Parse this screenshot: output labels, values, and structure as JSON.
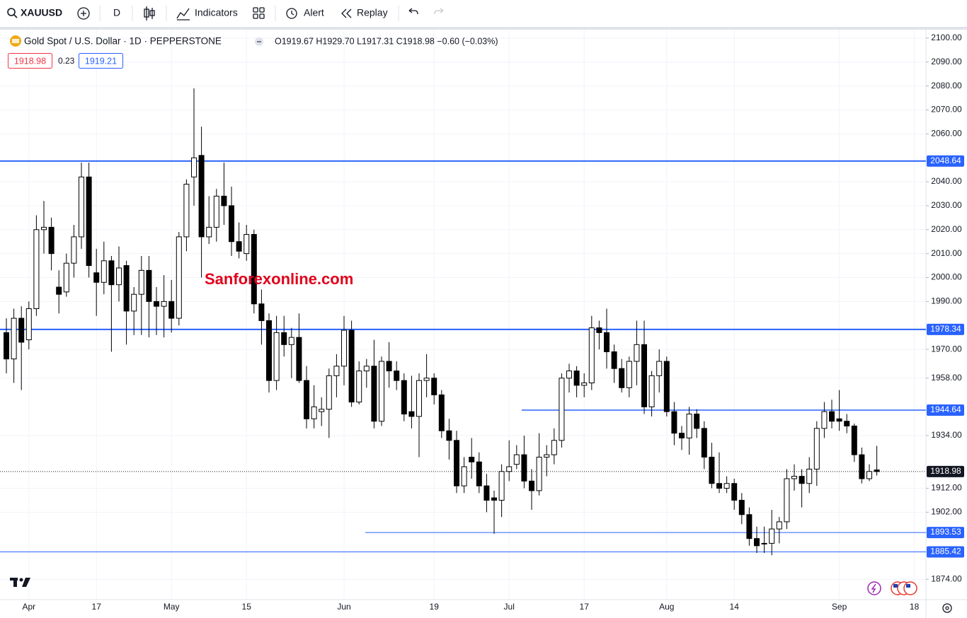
{
  "toolbar": {
    "symbol": "XAUUSD",
    "interval": "D",
    "indicators": "Indicators",
    "alert": "Alert",
    "replay": "Replay"
  },
  "legend": {
    "title": "Gold Spot / U.S. Dollar · 1D · PEPPERSTONE",
    "ohlc": "O1919.67 H1929.70 L1917.31 C1918.98 −0.60 (−0.03%)",
    "bid": "1918.98",
    "spread": "0.23",
    "ask": "1919.21"
  },
  "watermark": "Sanforexonline.com",
  "chart_data": {
    "type": "candlestick",
    "categories": [
      null,
      null,
      null,
      "Apr",
      null,
      null,
      null,
      null,
      null,
      null,
      null,
      null,
      "17",
      null,
      null,
      null,
      null,
      null,
      null,
      null,
      null,
      null,
      "May",
      null,
      null,
      null,
      null,
      null,
      null,
      null,
      null,
      null,
      "15",
      null,
      null,
      null,
      null,
      null,
      null,
      null,
      null,
      null,
      null,
      null,
      null,
      "Jun",
      null,
      null,
      null,
      null,
      null,
      null,
      null,
      null,
      null,
      null,
      null,
      "19",
      null,
      null,
      null,
      null,
      null,
      null,
      null,
      null,
      null,
      "Jul",
      null,
      null,
      null,
      null,
      null,
      null,
      null,
      null,
      null,
      "17",
      null,
      null,
      null,
      null,
      null,
      null,
      null,
      null,
      null,
      null,
      "Aug",
      null,
      null,
      null,
      null,
      null,
      null,
      null,
      null,
      "14",
      null,
      null,
      null,
      null,
      null,
      null,
      null,
      null,
      null,
      null,
      null,
      null,
      null,
      "Sep",
      null,
      null,
      null,
      null,
      null,
      null,
      null,
      null,
      null,
      "18"
    ],
    "open": [
      1977,
      1966,
      1983,
      1974,
      1987,
      2020,
      2021,
      1996,
      1994,
      2006,
      2017,
      2042,
      2002,
      1998,
      2007,
      1997,
      2005,
      1986,
      1993,
      2003,
      1990,
      1988,
      1990,
      1983,
      2017,
      2042,
      2051,
      2017,
      2021,
      2034,
      2030,
      2015,
      2010,
      2018,
      1989,
      1982,
      1957,
      1977,
      1972,
      1975,
      1957,
      1941,
      1944,
      1945,
      1959,
      1963,
      1978,
      1948,
      1961,
      1963,
      1940,
      1965,
      1961,
      1957,
      1944,
      1942,
      1957,
      1958,
      1951,
      1936,
      1932,
      1913,
      1925,
      1923,
      1913,
      1908,
      1907,
      1919,
      1922,
      1926,
      1915,
      1911,
      1925,
      1926,
      1932,
      1958,
      1961,
      1955,
      1956,
      1979,
      1977,
      1969,
      1962,
      1954,
      1965,
      1972,
      1946,
      1959,
      1965,
      1944,
      1935,
      1933,
      1943,
      1937,
      1925,
      1914,
      1912,
      1914,
      1907,
      1901,
      1891,
      1889,
      1889,
      1895,
      1898,
      1916,
      1917,
      1914,
      1920,
      1937,
      1944,
      1941,
      1940,
      1938,
      1926,
      1916,
      1919.67,
      null,
      null,
      null,
      null,
      null
    ],
    "high": [
      1983,
      1987,
      1988,
      1990,
      2026,
      2032,
      2025,
      2003,
      2010,
      2022,
      2048,
      2048,
      2012,
      2015,
      2009,
      2013,
      2007,
      1996,
      2009,
      2009,
      1996,
      2001,
      1999,
      2019,
      2041,
      2079,
      2063,
      2034,
      2037,
      2048,
      2038,
      2023,
      2022,
      2020,
      1995,
      1985,
      1984,
      1984,
      1979,
      1985,
      1963,
      1955,
      1950,
      1962,
      1968,
      1984,
      1982,
      1965,
      1966,
      1974,
      1967,
      1973,
      1965,
      1960,
      1959,
      1960,
      1968,
      1960,
      1953,
      1941,
      1936,
      1925,
      1933,
      1927,
      1918,
      1911,
      1922,
      1932,
      1930,
      1934,
      1920,
      1935,
      1930,
      1937,
      1960,
      1964,
      1963,
      1960,
      1984,
      1982,
      1987,
      1972,
      1966,
      1967,
      1982,
      1982,
      1961,
      1970,
      1967,
      1948,
      1938,
      1946,
      1945,
      1940,
      1931,
      1927,
      1917,
      1916,
      1910,
      1904,
      1896,
      1896,
      1903,
      1900,
      1920,
      1922,
      1920,
      1925,
      1940,
      1948,
      1949,
      1953,
      1943,
      1939,
      1929,
      1922,
      1929.7,
      null,
      null,
      null,
      null,
      null
    ],
    "low": [
      1960,
      1956,
      1953,
      1970,
      1984,
      2010,
      2003,
      1985,
      1992,
      2000,
      2012,
      2000,
      1984,
      1993,
      1969,
      1990,
      1972,
      1976,
      1976,
      1975,
      1976,
      1975,
      1977,
      1980,
      2011,
      2030,
      2000,
      2014,
      2015,
      2022,
      2009,
      2008,
      2007,
      1985,
      1972,
      1952,
      1953,
      1967,
      1958,
      1956,
      1937,
      1937,
      1938,
      1933,
      1950,
      1955,
      1946,
      1947,
      1954,
      1937,
      1938,
      1954,
      1953,
      1940,
      1937,
      1925,
      1950,
      1947,
      1933,
      1924,
      1910,
      1910,
      1916,
      1910,
      1902,
      1893,
      1900,
      1915,
      1920,
      1912,
      1903,
      1909,
      1917,
      1922,
      1929,
      1952,
      1950,
      1950,
      1953,
      1970,
      1962,
      1956,
      1952,
      1950,
      1955,
      1943,
      1942,
      1952,
      1942,
      1930,
      1928,
      1926,
      1933,
      1920,
      1912,
      1910,
      1910,
      1903,
      1897,
      1888,
      1885,
      1885,
      1884,
      1889,
      1895,
      1911,
      1904,
      1910,
      1913,
      1933,
      1937,
      1936,
      1935,
      1923,
      1914,
      1915,
      1917.31,
      null,
      null,
      null,
      null,
      null
    ],
    "close": [
      1966,
      1983,
      1973,
      1987,
      2020,
      2021,
      2010,
      1993,
      2006,
      2017,
      2042,
      2005,
      1998,
      2007,
      1997,
      2004,
      1986,
      1993,
      2003,
      1990,
      1988,
      1990,
      1983,
      2017,
      2039,
      2050,
      2017,
      2021,
      2034,
      2030,
      2015,
      2011,
      2018,
      1989,
      1982,
      1957,
      1977,
      1972,
      1975,
      1957,
      1941,
      1946,
      1945,
      1959,
      1963,
      1978,
      1948,
      1961,
      1963,
      1940,
      1965,
      1961,
      1957,
      1943,
      1942,
      1957,
      1958,
      1951,
      1936,
      1932,
      1913,
      1921,
      1923,
      1913,
      1907,
      1907,
      1919,
      1921,
      1926,
      1915,
      1911,
      1925,
      1926,
      1932,
      1958,
      1961,
      1955,
      1956,
      1979,
      1977,
      1969,
      1962,
      1954,
      1965,
      1972,
      1946,
      1959,
      1965,
      1944,
      1935,
      1933,
      1943,
      1937,
      1925,
      1914,
      1912,
      1914,
      1907,
      1901,
      1891,
      1888,
      1889,
      1895,
      1898,
      1916,
      1917,
      1914,
      1920,
      1937,
      1944,
      1940,
      1940,
      1938,
      1926,
      1916,
      1919,
      1918.98,
      null,
      null,
      null,
      null,
      null
    ],
    "ylim": [
      1865.5,
      2103.5
    ],
    "yticks": [
      {
        "value": 2100,
        "label": "2100.00"
      },
      {
        "value": 2090,
        "label": "2090.00"
      },
      {
        "value": 2080,
        "label": "2080.00"
      },
      {
        "value": 2070,
        "label": "2070.00"
      },
      {
        "value": 2060,
        "label": "2060.00"
      },
      {
        "value": 2040,
        "label": "2040.00"
      },
      {
        "value": 2030,
        "label": "2030.00"
      },
      {
        "value": 2020,
        "label": "2020.00"
      },
      {
        "value": 2010,
        "label": "2010.00"
      },
      {
        "value": 2000,
        "label": "2000.00"
      },
      {
        "value": 1990,
        "label": "1990.00"
      },
      {
        "value": 1970,
        "label": "1970.00"
      },
      {
        "value": 1958,
        "label": "1958.00"
      },
      {
        "value": 1934,
        "label": "1934.00"
      },
      {
        "value": 1912,
        "label": "1912.00"
      },
      {
        "value": 1902,
        "label": "1902.00"
      },
      {
        "value": 1874,
        "label": "1874.00"
      }
    ],
    "grid": true,
    "price_lines": [
      2048.64,
      1978.34,
      1944.64,
      1893.53,
      1885.42
    ],
    "line_color": "#2962ff",
    "last_price": 1918.98,
    "up_color": "#ffffff",
    "down_color": "#000000"
  }
}
